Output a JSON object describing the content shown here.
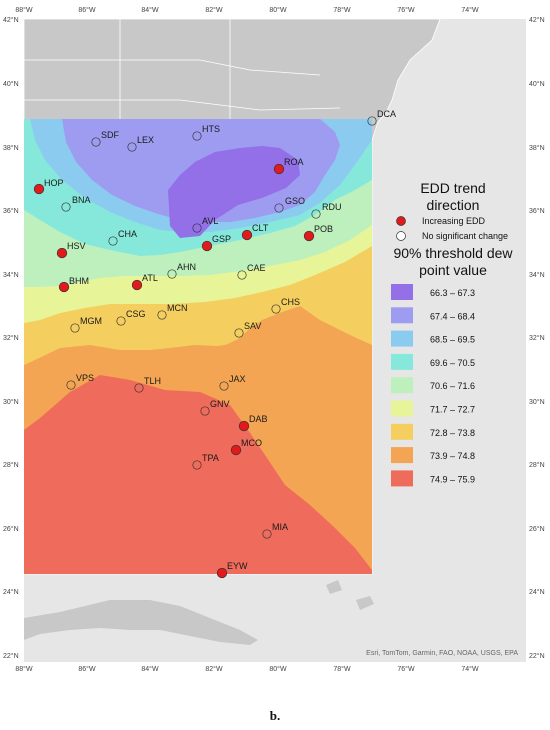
{
  "caption": "b.",
  "attribution": "Esri, TomTom, Garmin, FAO, NOAA, USGS, EPA",
  "axes": {
    "lon_ticks": [
      "88°W",
      "86°W",
      "84°W",
      "82°W",
      "80°W",
      "78°W",
      "76°W",
      "74°W"
    ],
    "lat_ticks": [
      "42°N",
      "40°N",
      "38°N",
      "36°N",
      "34°N",
      "32°N",
      "30°N",
      "28°N",
      "26°N",
      "24°N",
      "22°N"
    ]
  },
  "legend": {
    "trend_title_line1": "EDD trend",
    "trend_title_line2": "direction",
    "increasing_label": "Increasing EDD",
    "no_change_label": "No significant change",
    "increasing_color": "#e31a1c",
    "no_change_color": "#ffffff",
    "threshold_title_line1": "90% threshold dew",
    "threshold_title_line2": "point value",
    "classes": [
      {
        "label": "66.3 – 67.3",
        "color": "#9370e8"
      },
      {
        "label": "67.4 – 68.4",
        "color": "#9d9cf0"
      },
      {
        "label": "68.5 – 69.5",
        "color": "#8ccbf0"
      },
      {
        "label": "69.6 – 70.5",
        "color": "#86e8da"
      },
      {
        "label": "70.6 – 71.6",
        "color": "#bdf0bd"
      },
      {
        "label": "71.7 – 72.7",
        "color": "#e7f598"
      },
      {
        "label": "72.8 – 73.8",
        "color": "#f4cf5f"
      },
      {
        "label": "73.9 – 74.8",
        "color": "#f3a553"
      },
      {
        "label": "74.9 – 75.9",
        "color": "#ef6b5c"
      }
    ]
  },
  "stations": [
    {
      "id": "DCA",
      "trend": "none"
    },
    {
      "id": "HTS",
      "trend": "none"
    },
    {
      "id": "SDF",
      "trend": "none"
    },
    {
      "id": "LEX",
      "trend": "none"
    },
    {
      "id": "ROA",
      "trend": "increasing"
    },
    {
      "id": "HOP",
      "trend": "increasing"
    },
    {
      "id": "BNA",
      "trend": "none"
    },
    {
      "id": "GSO",
      "trend": "none"
    },
    {
      "id": "RDU",
      "trend": "none"
    },
    {
      "id": "AVL",
      "trend": "none"
    },
    {
      "id": "CLT",
      "trend": "increasing"
    },
    {
      "id": "POB",
      "trend": "increasing"
    },
    {
      "id": "CHA",
      "trend": "none"
    },
    {
      "id": "GSP",
      "trend": "increasing"
    },
    {
      "id": "HSV",
      "trend": "increasing"
    },
    {
      "id": "AHN",
      "trend": "none"
    },
    {
      "id": "CAE",
      "trend": "none"
    },
    {
      "id": "ATL",
      "trend": "increasing"
    },
    {
      "id": "BHM",
      "trend": "increasing"
    },
    {
      "id": "CHS",
      "trend": "none"
    },
    {
      "id": "MCN",
      "trend": "none"
    },
    {
      "id": "CSG",
      "trend": "none"
    },
    {
      "id": "MGM",
      "trend": "none"
    },
    {
      "id": "SAV",
      "trend": "none"
    },
    {
      "id": "VPS",
      "trend": "none"
    },
    {
      "id": "TLH",
      "trend": "none"
    },
    {
      "id": "JAX",
      "trend": "none"
    },
    {
      "id": "GNV",
      "trend": "none"
    },
    {
      "id": "DAB",
      "trend": "increasing"
    },
    {
      "id": "MCO",
      "trend": "increasing"
    },
    {
      "id": "TPA",
      "trend": "none"
    },
    {
      "id": "MIA",
      "trend": "none"
    },
    {
      "id": "EYW",
      "trend": "increasing"
    }
  ]
}
